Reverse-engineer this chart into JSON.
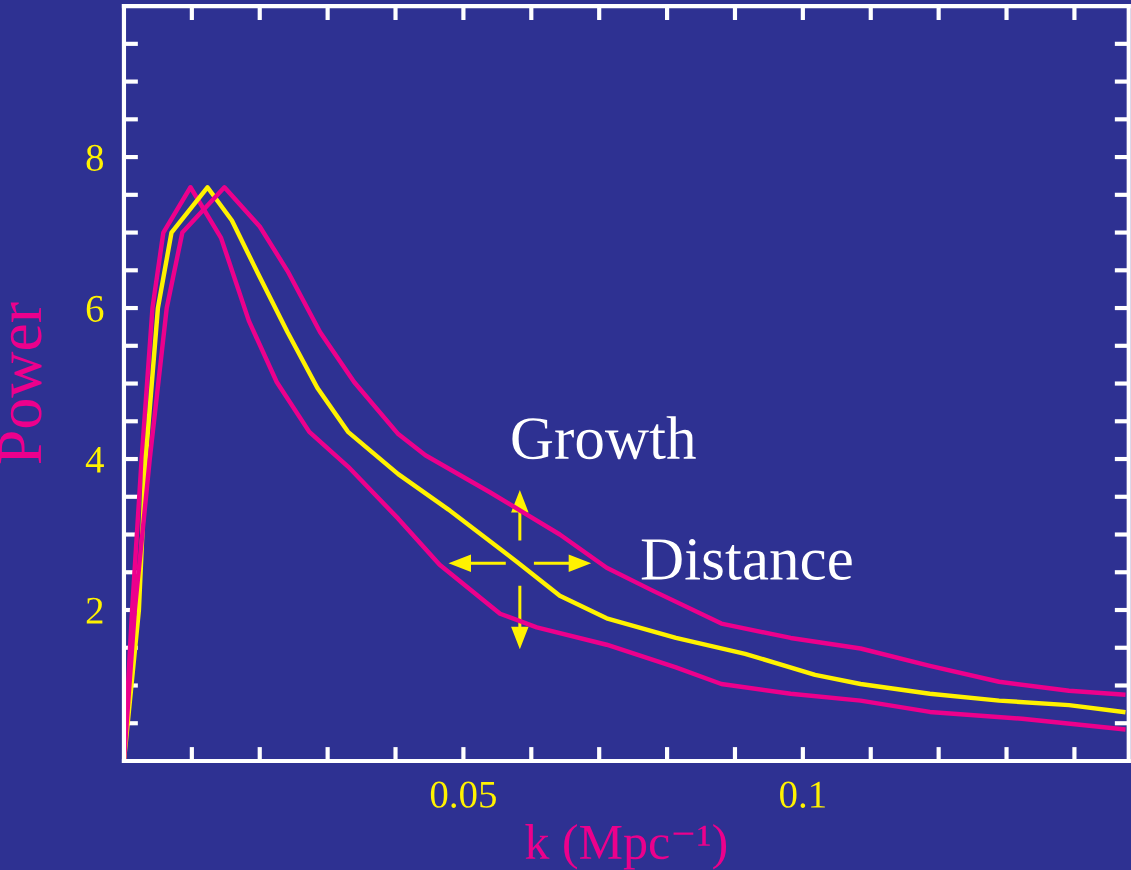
{
  "chart_data": {
    "type": "line",
    "xlabel": "k (Mpc⁻¹)",
    "ylabel": "Power",
    "xlim": [
      0,
      0.148
    ],
    "ylim": [
      0,
      10
    ],
    "xticks": [
      {
        "value": 0.01,
        "label": null
      },
      {
        "value": 0.02,
        "label": null
      },
      {
        "value": 0.03,
        "label": null
      },
      {
        "value": 0.04,
        "label": null
      },
      0.05,
      {
        "value": 0.06,
        "label": null
      },
      {
        "value": 0.07,
        "label": null
      },
      {
        "value": 0.08,
        "label": null
      },
      {
        "value": 0.09,
        "label": null
      },
      0.1,
      {
        "value": 0.11,
        "label": null
      },
      {
        "value": 0.12,
        "label": null
      },
      {
        "value": 0.13,
        "label": null
      },
      {
        "value": 0.14,
        "label": null
      }
    ],
    "yticks": [
      {
        "value": 0.5,
        "label": null
      },
      {
        "value": 1,
        "label": null
      },
      {
        "value": 1.5,
        "label": null
      },
      2,
      {
        "value": 2.5,
        "label": null
      },
      {
        "value": 3,
        "label": null
      },
      {
        "value": 3.5,
        "label": null
      },
      4,
      {
        "value": 4.5,
        "label": null
      },
      {
        "value": 5,
        "label": null
      },
      {
        "value": 5.5,
        "label": null
      },
      6,
      {
        "value": 6.5,
        "label": null
      },
      {
        "value": 7,
        "label": null
      },
      {
        "value": 7.5,
        "label": null
      },
      8,
      {
        "value": 8.5,
        "label": null
      },
      {
        "value": 9,
        "label": null
      },
      {
        "value": 9.5,
        "label": null
      }
    ],
    "grid": false,
    "legend": false,
    "marker": "none",
    "line_style": "solid",
    "annotations": [
      "Growth",
      "Distance"
    ],
    "series": [
      {
        "color": "#ec008c",
        "x": [
          0,
          0.0012,
          0.0026,
          0.0042,
          0.0058,
          0.0098,
          0.0143,
          0.0184,
          0.0225,
          0.0273,
          0.033,
          0.0404,
          0.0465,
          0.0554,
          0.0608,
          0.0711,
          0.0813,
          0.088,
          0.0982,
          0.1085,
          0.1187,
          0.1323,
          0.1472
        ],
        "values": [
          0,
          2,
          4,
          6,
          7,
          7.6,
          6.93,
          5.83,
          5.02,
          4.36,
          3.9,
          3.21,
          2.6,
          1.95,
          1.77,
          1.54,
          1.24,
          1.02,
          0.89,
          0.8,
          0.65,
          0.56,
          0.42
        ]
      },
      {
        "color": "#fff200",
        "x": [
          0,
          0.0022,
          0.0032,
          0.005,
          0.007,
          0.0123,
          0.0159,
          0.02,
          0.0241,
          0.0285,
          0.033,
          0.0404,
          0.0478,
          0.058,
          0.0642,
          0.0711,
          0.0813,
          0.0915,
          0.1018,
          0.1085,
          0.1187,
          0.1289,
          0.1392,
          0.1472
        ],
        "values": [
          0,
          2,
          4,
          6,
          7,
          7.6,
          7.16,
          6.41,
          5.68,
          4.94,
          4.36,
          3.8,
          3.33,
          2.63,
          2.19,
          1.89,
          1.63,
          1.42,
          1.14,
          1.02,
          0.89,
          0.8,
          0.74,
          0.65
        ]
      },
      {
        "color": "#ec008c",
        "x": [
          0,
          0.0016,
          0.0038,
          0.0063,
          0.0086,
          0.0148,
          0.02,
          0.0241,
          0.0289,
          0.0339,
          0.0404,
          0.0444,
          0.0539,
          0.0642,
          0.0711,
          0.0778,
          0.088,
          0.0982,
          0.1085,
          0.1187,
          0.1289,
          0.1392,
          0.1472
        ],
        "values": [
          0,
          2,
          4,
          6,
          7,
          7.6,
          7.08,
          6.49,
          5.68,
          5.02,
          4.33,
          4.05,
          3.56,
          3.0,
          2.56,
          2.26,
          1.82,
          1.63,
          1.49,
          1.26,
          1.05,
          0.93,
          0.88
        ]
      }
    ]
  }
}
